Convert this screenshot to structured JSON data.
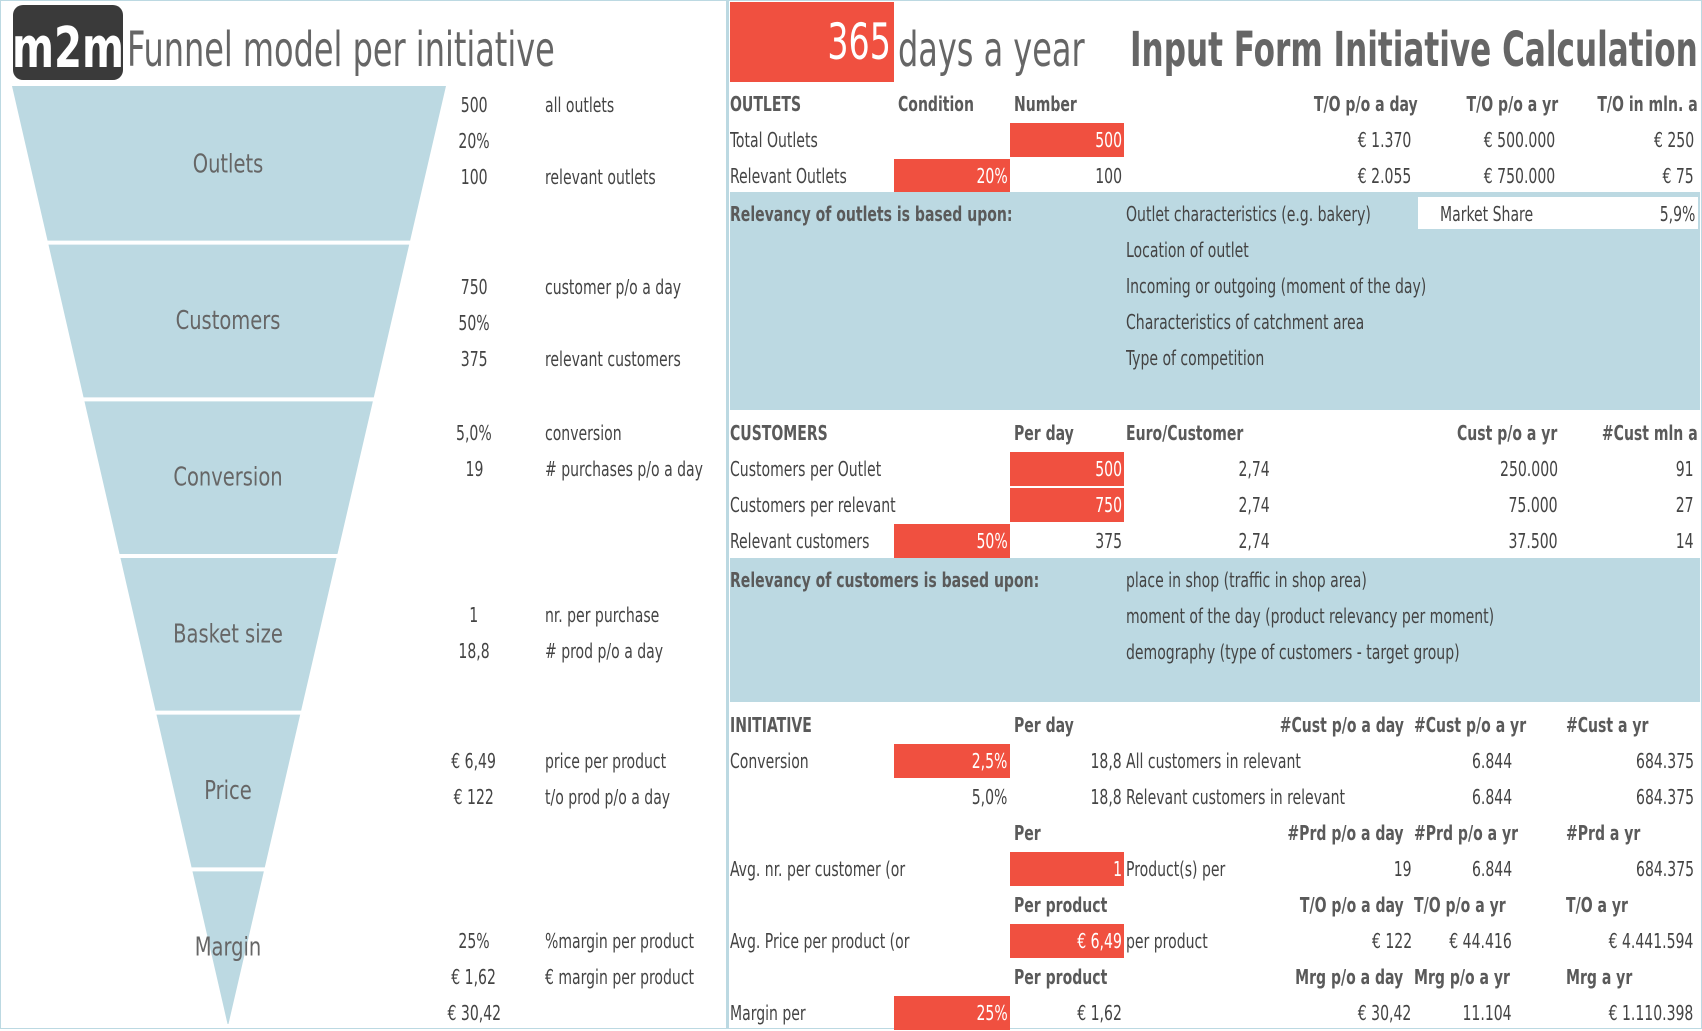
{
  "logo": {
    "text": "m2m"
  },
  "left_title": "Funnel model per initiative",
  "days": {
    "value": "365",
    "label": "days a year"
  },
  "right_title": "Input Form Initiative Calculation",
  "funnel_stages": [
    "Outlets",
    "Customers",
    "Conversion",
    "Basket size",
    "Price",
    "Margin"
  ],
  "funnel_values": [
    {
      "num": "500",
      "label": "all outlets"
    },
    {
      "num": "20%",
      "label": ""
    },
    {
      "num": "100",
      "label": "relevant outlets"
    },
    {
      "num": "750",
      "label": "customer p/o a day"
    },
    {
      "num": "50%",
      "label": ""
    },
    {
      "num": "375",
      "label": "relevant customers"
    },
    {
      "num": "5,0%",
      "label": "conversion"
    },
    {
      "num": "19",
      "label": "# purchases p/o a day"
    },
    {
      "num": "1",
      "label": "nr. per purchase"
    },
    {
      "num": "18,8",
      "label": "# prod p/o a day"
    },
    {
      "num": "€ 6,49",
      "label": "price per product"
    },
    {
      "num": "€ 122",
      "label": "t/o prod p/o a day"
    },
    {
      "num": "25%",
      "label": "%margin per product"
    },
    {
      "num": "€ 1,62",
      "label": "€ margin per product"
    },
    {
      "num": "€ 30,42",
      "label": ""
    }
  ],
  "outlets": {
    "headers": [
      "OUTLETS",
      "Condition",
      "Number",
      "T/O p/o a day",
      "T/O p/o a yr",
      "T/O in mln. a yr"
    ],
    "rows": [
      {
        "label": "Total Outlets",
        "cond": "",
        "num": "500",
        "tod": "€ 1.370",
        "toy": "€ 500.000",
        "mln": "€ 250"
      },
      {
        "label": "Relevant Outlets",
        "cond": "20%",
        "num": "100",
        "tod": "€ 2.055",
        "toy": "€ 750.000",
        "mln": "€ 75"
      }
    ],
    "relevancy_title": "Relevancy of outlets is based upon:",
    "relevancy_items": [
      "Outlet characteristics (e.g. bakery)",
      "Location of outlet",
      "Incoming or outgoing (moment of the day)",
      "Characteristics of catchment area",
      "Type of competition"
    ],
    "market_share_label": "Market Share",
    "market_share_value": "5,9%"
  },
  "customers": {
    "headers": [
      "CUSTOMERS",
      "Per day",
      "Euro/Customer",
      "Cust p/o a yr",
      "#Cust mln a yr"
    ],
    "rows": [
      {
        "label": "Customers per Outlet",
        "cond": "",
        "day": "500",
        "euro": "2,74",
        "yr": "250.000",
        "mln": "91"
      },
      {
        "label": "Customers per relevant outlet",
        "cond": "",
        "day": "750",
        "euro": "2,74",
        "yr": "75.000",
        "mln": "27"
      },
      {
        "label": "Relevant customers",
        "cond": "50%",
        "day": "375",
        "euro": "2,74",
        "yr": "37.500",
        "mln": "14"
      }
    ],
    "relevancy_title": "Relevancy of customers is based upon:",
    "relevancy_items": [
      "place in shop (traffic in shop area)",
      "moment of the day (product relevancy per moment)",
      "demography (type of customers - target group)"
    ]
  },
  "initiative": {
    "headers": [
      "INITIATIVE",
      "Per day",
      "#Cust p/o a day",
      "#Cust p/o a yr",
      "#Cust a yr"
    ],
    "conv_label": "Conversion (change",
    "conv_input": "2,5%",
    "conv_day": "18,8",
    "conv_desc": "All customers in relevant outlets",
    "conv_day2": "6.844",
    "conv_yr": "684.375",
    "conv2_pct": "5,0%",
    "conv2_day": "18,8",
    "conv2_desc": "Relevant customers in relevant outl",
    "conv2_day2": "6.844",
    "conv2_yr": "684.375",
    "purchase_headers": [
      "Per purchase",
      "#Prd p/o a day",
      "#Prd p/o a yr",
      "#Prd a yr"
    ],
    "avg_nr_label": "Avg. nr. per customer (or change)",
    "avg_nr_input": "1",
    "avg_nr_desc": "Product(s) per cus",
    "avg_nr_day": "19",
    "avg_nr_yr": "6.844",
    "avg_nr_tot": "684.375",
    "price_headers": [
      "Per product",
      "T/O p/o a day",
      "T/O p/o a yr",
      "T/O a yr"
    ],
    "price_label": "Avg. Price per product (or change)",
    "price_input": "€ 6,49",
    "price_desc": "per product",
    "price_day": "€ 122",
    "price_yr": "€ 44.416",
    "price_tot": "€ 4.441.594",
    "margin_headers": [
      "Per product",
      "Mrg p/o a day",
      "Mrg p/o a yr",
      "Mrg a yr"
    ],
    "margin_label": "Margin per product",
    "margin_input": "25%",
    "margin_prod": "€ 1,62",
    "margin_day": "€ 30,42",
    "margin_yr": "11.104",
    "margin_tot": "€ 1.110.398"
  }
}
